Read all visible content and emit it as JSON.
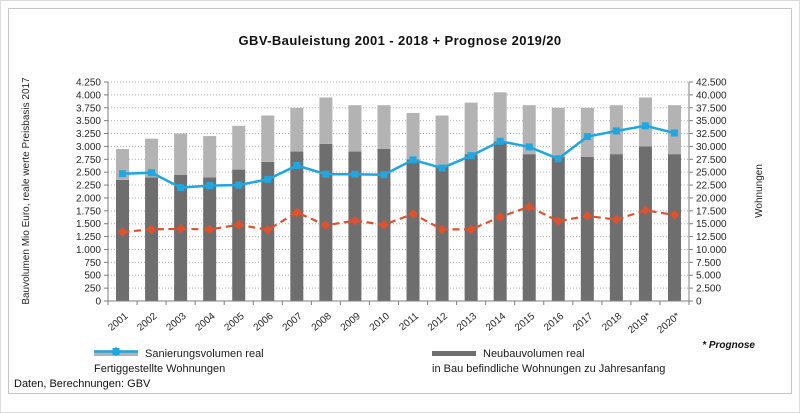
{
  "title": "GBV-Bauleistung  2001  -  2018  +  Prognose 2019/20",
  "source_note": "Daten, Berechnungen: GBV",
  "prognose_note": "* Prognose",
  "colors": {
    "neubau_bar": "#6e6e6e",
    "sanierung_bar": "#b3b3b3",
    "fertiggestellte_line": "#e2512c",
    "inbau_line": "#1ea7e1",
    "gridline": "#b0b0b0",
    "axis": "#7f7f7f",
    "text": "#262626"
  },
  "legend": [
    {
      "label": "Sanierungsvolumen real",
      "swatch": "light-gray-bar"
    },
    {
      "label": "Neubauvolumen real",
      "swatch": "dark-gray-bar"
    },
    {
      "label": "Fertiggestellte Wohnungen",
      "swatch": "red-dashed-line-diamond"
    },
    {
      "label": "in Bau befindliche Wohnungen zu Jahresanfang",
      "swatch": "blue-line-square"
    }
  ],
  "chart_data": {
    "type": "combo: stacked bars (left axis) + lines (right axis)",
    "grid": "dotted horizontal gridlines",
    "legend_position": "bottom",
    "categories": [
      "2001",
      "2002",
      "2003",
      "2004",
      "2005",
      "2006",
      "2007",
      "2008",
      "2009",
      "2010",
      "2011",
      "2012",
      "2013",
      "2014",
      "2015",
      "2016",
      "2017",
      "2018",
      "2019*",
      "2020*"
    ],
    "series": [
      {
        "name": "Neubauvolumen real",
        "kind": "bar-stack-bottom",
        "axis": "left",
        "color_key": "neubau_bar",
        "values": [
          2350,
          2400,
          2450,
          2400,
          2550,
          2700,
          2900,
          3050,
          2900,
          2950,
          2750,
          2600,
          2850,
          3100,
          2850,
          2800,
          2800,
          2850,
          3000,
          2850
        ]
      },
      {
        "name": "Sanierungsvolumen real",
        "kind": "bar-stack-top",
        "axis": "left",
        "color_key": "sanierung_bar",
        "values": [
          600,
          750,
          800,
          800,
          850,
          900,
          850,
          900,
          900,
          850,
          900,
          1000,
          1000,
          950,
          950,
          950,
          950,
          950,
          950,
          950
        ]
      },
      {
        "name": "Fertiggestellte Wohnungen",
        "kind": "line-dashed-diamond",
        "axis": "right",
        "color_key": "fertiggestellte_line",
        "values": [
          13400,
          13900,
          14000,
          13900,
          14800,
          13800,
          17200,
          14700,
          15600,
          14800,
          16900,
          13900,
          13900,
          16300,
          18300,
          15500,
          16500,
          15800,
          17600,
          16700
        ]
      },
      {
        "name": "in Bau befindliche Wohnungen zu Jahresanfang",
        "kind": "line-solid-square",
        "axis": "right",
        "color_key": "inbau_line",
        "values": [
          24700,
          24900,
          22000,
          22400,
          22500,
          23600,
          26300,
          24600,
          24600,
          24500,
          27400,
          25800,
          28200,
          31000,
          29900,
          27600,
          31900,
          33000,
          34000,
          32600
        ]
      }
    ],
    "axes": {
      "left": {
        "title": "Bauvolumen Mio Euro, reale werte Preisbasis 2017",
        "min": 0,
        "max": 4250,
        "step": 250,
        "tick_labels": [
          "4.250",
          "4.000",
          "3.750",
          "3.500",
          "3.250",
          "3.000",
          "2.750",
          "2.500",
          "2.250",
          "2.000",
          "1.750",
          "1.500",
          "1.250",
          "1.000",
          "750",
          "500",
          "250",
          "0"
        ]
      },
      "right": {
        "title": "Wohnungen",
        "min": 0,
        "max": 42500,
        "step": 2500,
        "tick_labels": [
          "42.500",
          "40.000",
          "37.500",
          "35.000",
          "32.500",
          "30.000",
          "27.500",
          "25.000",
          "22.500",
          "20.000",
          "17.500",
          "15.000",
          "12.500",
          "10.000",
          "7.500",
          "5.000",
          "2.500",
          "0"
        ]
      }
    }
  }
}
